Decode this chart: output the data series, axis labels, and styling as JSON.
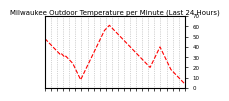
{
  "title": "Milwaukee Outdoor Temperature per Minute (Last 24 Hours)",
  "line_color": "#ff0000",
  "bg_color": "#ffffff",
  "plot_bg": "#ffffff",
  "grid_color": "#aaaaaa",
  "ylim": [
    0,
    70
  ],
  "yticks": [
    0,
    10,
    20,
    30,
    40,
    50,
    60,
    70
  ],
  "ytick_labels": [
    "0",
    "10",
    "20",
    "30",
    "40",
    "50",
    "60",
    "70"
  ],
  "y_points": [
    48,
    47,
    46,
    45,
    44,
    43,
    42,
    41,
    40,
    39,
    38,
    37,
    36,
    35,
    34,
    33,
    34,
    33,
    32,
    31,
    30,
    31,
    30,
    29,
    28,
    27,
    26,
    25,
    24,
    22,
    20,
    18,
    16,
    14,
    12,
    10,
    8,
    10,
    12,
    14,
    16,
    18,
    20,
    22,
    24,
    26,
    28,
    30,
    32,
    34,
    36,
    38,
    40,
    42,
    44,
    46,
    48,
    50,
    52,
    54,
    56,
    57,
    58,
    59,
    60,
    61,
    60,
    59,
    58,
    57,
    56,
    55,
    54,
    53,
    52,
    51,
    50,
    49,
    48,
    47,
    46,
    45,
    44,
    43,
    42,
    41,
    40,
    39,
    38,
    37,
    36,
    35,
    34,
    33,
    32,
    31,
    30,
    29,
    28,
    27,
    26,
    25,
    24,
    23,
    22,
    21,
    20,
    22,
    24,
    26,
    28,
    30,
    32,
    34,
    36,
    38,
    40,
    38,
    36,
    34,
    32,
    30,
    28,
    26,
    24,
    22,
    20,
    18,
    17,
    16,
    15,
    14,
    13,
    12,
    11,
    10,
    9,
    8,
    7,
    6,
    5,
    4
  ],
  "title_fontsize": 5,
  "tick_fontsize": 4,
  "linewidth": 0.8,
  "linestyle": "--",
  "num_xticks": 24
}
